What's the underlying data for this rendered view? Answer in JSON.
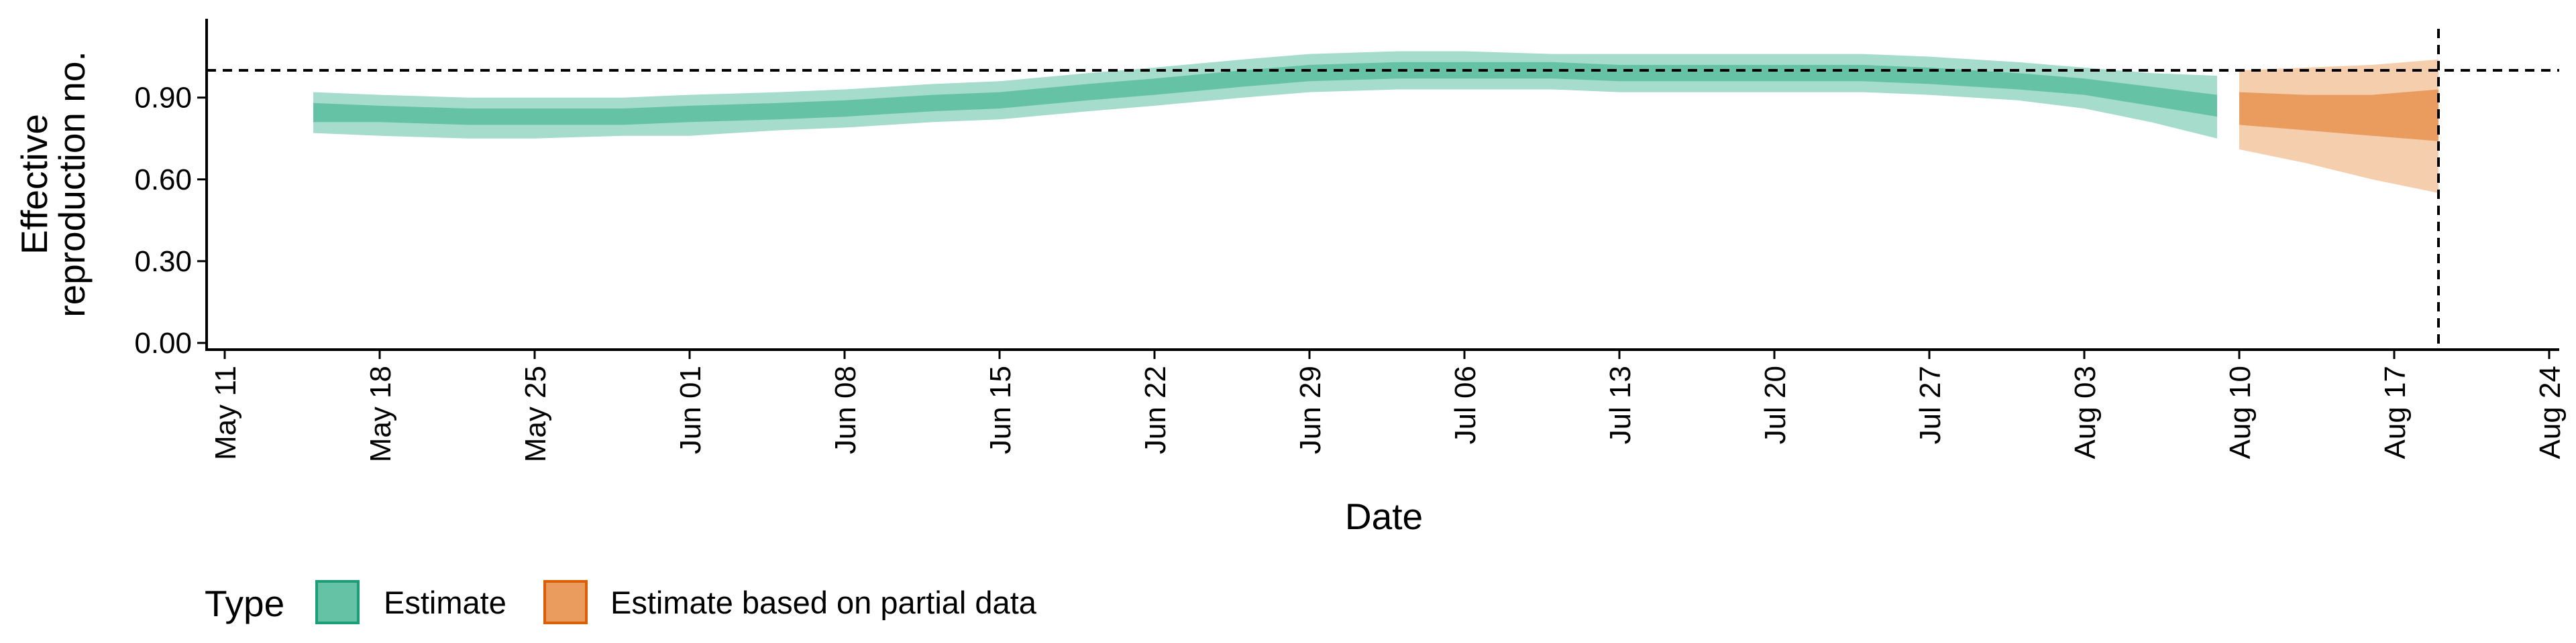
{
  "chart_data": {
    "type": "area",
    "title": "",
    "xlabel": "Date",
    "ylabel_lines": [
      "Effective",
      "reproduction no."
    ],
    "ylim": [
      0,
      1.07
    ],
    "y_ticks": [
      0.0,
      0.3,
      0.6,
      0.9
    ],
    "y_tick_labels": [
      "0.00",
      "0.30",
      "0.60",
      "0.90"
    ],
    "xlim": [
      "2020-05-10",
      "2020-08-25"
    ],
    "x_ticks": [
      {
        "date": "2020-05-11",
        "label": "May 11"
      },
      {
        "date": "2020-05-18",
        "label": "May 18"
      },
      {
        "date": "2020-05-25",
        "label": "May 25"
      },
      {
        "date": "2020-06-01",
        "label": "Jun 01"
      },
      {
        "date": "2020-06-08",
        "label": "Jun 08"
      },
      {
        "date": "2020-06-15",
        "label": "Jun 15"
      },
      {
        "date": "2020-06-22",
        "label": "Jun 22"
      },
      {
        "date": "2020-06-29",
        "label": "Jun 29"
      },
      {
        "date": "2020-07-06",
        "label": "Jul 06"
      },
      {
        "date": "2020-07-13",
        "label": "Jul 13"
      },
      {
        "date": "2020-07-20",
        "label": "Jul 20"
      },
      {
        "date": "2020-07-27",
        "label": "Jul 27"
      },
      {
        "date": "2020-08-03",
        "label": "Aug 03"
      },
      {
        "date": "2020-08-10",
        "label": "Aug 10"
      },
      {
        "date": "2020-08-17",
        "label": "Aug 17"
      },
      {
        "date": "2020-08-24",
        "label": "Aug 24"
      }
    ],
    "reference_hline": 1.0,
    "reference_vline": "2020-08-19",
    "grid": false,
    "legend_position": "bottom-left",
    "legend": {
      "title": "Type",
      "entries": [
        {
          "label": "Estimate",
          "fill": "#66C2A5",
          "stroke": "#1B9E77"
        },
        {
          "label": "Estimate based on partial data",
          "fill": "#E99C5E",
          "stroke": "#D95F02"
        }
      ]
    },
    "series": [
      {
        "name": "Estimate",
        "color_inner": "#66C2A5",
        "color_outer": "#A5DCCB",
        "points": [
          {
            "x": "2020-05-15",
            "lo90": 0.77,
            "lo50": 0.81,
            "hi50": 0.88,
            "hi90": 0.92
          },
          {
            "x": "2020-05-18",
            "lo90": 0.76,
            "lo50": 0.81,
            "hi50": 0.87,
            "hi90": 0.91
          },
          {
            "x": "2020-05-22",
            "lo90": 0.75,
            "lo50": 0.8,
            "hi50": 0.86,
            "hi90": 0.9
          },
          {
            "x": "2020-05-25",
            "lo90": 0.75,
            "lo50": 0.8,
            "hi50": 0.86,
            "hi90": 0.9
          },
          {
            "x": "2020-05-29",
            "lo90": 0.76,
            "lo50": 0.8,
            "hi50": 0.86,
            "hi90": 0.9
          },
          {
            "x": "2020-06-01",
            "lo90": 0.76,
            "lo50": 0.81,
            "hi50": 0.87,
            "hi90": 0.91
          },
          {
            "x": "2020-06-05",
            "lo90": 0.78,
            "lo50": 0.82,
            "hi50": 0.88,
            "hi90": 0.92
          },
          {
            "x": "2020-06-08",
            "lo90": 0.79,
            "lo50": 0.83,
            "hi50": 0.89,
            "hi90": 0.93
          },
          {
            "x": "2020-06-12",
            "lo90": 0.81,
            "lo50": 0.85,
            "hi50": 0.91,
            "hi90": 0.95
          },
          {
            "x": "2020-06-15",
            "lo90": 0.82,
            "lo50": 0.86,
            "hi50": 0.92,
            "hi90": 0.96
          },
          {
            "x": "2020-06-19",
            "lo90": 0.85,
            "lo50": 0.89,
            "hi50": 0.95,
            "hi90": 0.99
          },
          {
            "x": "2020-06-22",
            "lo90": 0.87,
            "lo50": 0.91,
            "hi50": 0.97,
            "hi90": 1.01
          },
          {
            "x": "2020-06-26",
            "lo90": 0.9,
            "lo50": 0.94,
            "hi50": 1.0,
            "hi90": 1.04
          },
          {
            "x": "2020-06-29",
            "lo90": 0.92,
            "lo50": 0.96,
            "hi50": 1.02,
            "hi90": 1.06
          },
          {
            "x": "2020-07-03",
            "lo90": 0.93,
            "lo50": 0.97,
            "hi50": 1.03,
            "hi90": 1.07
          },
          {
            "x": "2020-07-06",
            "lo90": 0.93,
            "lo50": 0.97,
            "hi50": 1.03,
            "hi90": 1.07
          },
          {
            "x": "2020-07-10",
            "lo90": 0.93,
            "lo50": 0.97,
            "hi50": 1.03,
            "hi90": 1.06
          },
          {
            "x": "2020-07-13",
            "lo90": 0.92,
            "lo50": 0.96,
            "hi50": 1.02,
            "hi90": 1.06
          },
          {
            "x": "2020-07-17",
            "lo90": 0.92,
            "lo50": 0.96,
            "hi50": 1.02,
            "hi90": 1.06
          },
          {
            "x": "2020-07-20",
            "lo90": 0.92,
            "lo50": 0.96,
            "hi50": 1.02,
            "hi90": 1.06
          },
          {
            "x": "2020-07-24",
            "lo90": 0.92,
            "lo50": 0.96,
            "hi50": 1.02,
            "hi90": 1.06
          },
          {
            "x": "2020-07-27",
            "lo90": 0.91,
            "lo50": 0.95,
            "hi50": 1.01,
            "hi90": 1.05
          },
          {
            "x": "2020-07-31",
            "lo90": 0.89,
            "lo50": 0.93,
            "hi50": 0.99,
            "hi90": 1.03
          },
          {
            "x": "2020-08-03",
            "lo90": 0.86,
            "lo50": 0.91,
            "hi50": 0.97,
            "hi90": 1.01
          },
          {
            "x": "2020-08-06",
            "lo90": 0.81,
            "lo50": 0.87,
            "hi50": 0.94,
            "hi90": 0.99
          },
          {
            "x": "2020-08-09",
            "lo90": 0.75,
            "lo50": 0.83,
            "hi50": 0.91,
            "hi90": 0.98
          }
        ]
      },
      {
        "name": "Estimate based on partial data",
        "color_inner": "#E99C5E",
        "color_outer": "#F5CEAE",
        "points": [
          {
            "x": "2020-08-10",
            "lo90": 0.71,
            "lo50": 0.8,
            "hi50": 0.92,
            "hi90": 1.0
          },
          {
            "x": "2020-08-13",
            "lo90": 0.66,
            "lo50": 0.78,
            "hi50": 0.91,
            "hi90": 1.01
          },
          {
            "x": "2020-08-16",
            "lo90": 0.6,
            "lo50": 0.76,
            "hi50": 0.91,
            "hi90": 1.02
          },
          {
            "x": "2020-08-19",
            "lo90": 0.55,
            "lo50": 0.74,
            "hi50": 0.93,
            "hi90": 1.04
          }
        ]
      }
    ]
  }
}
